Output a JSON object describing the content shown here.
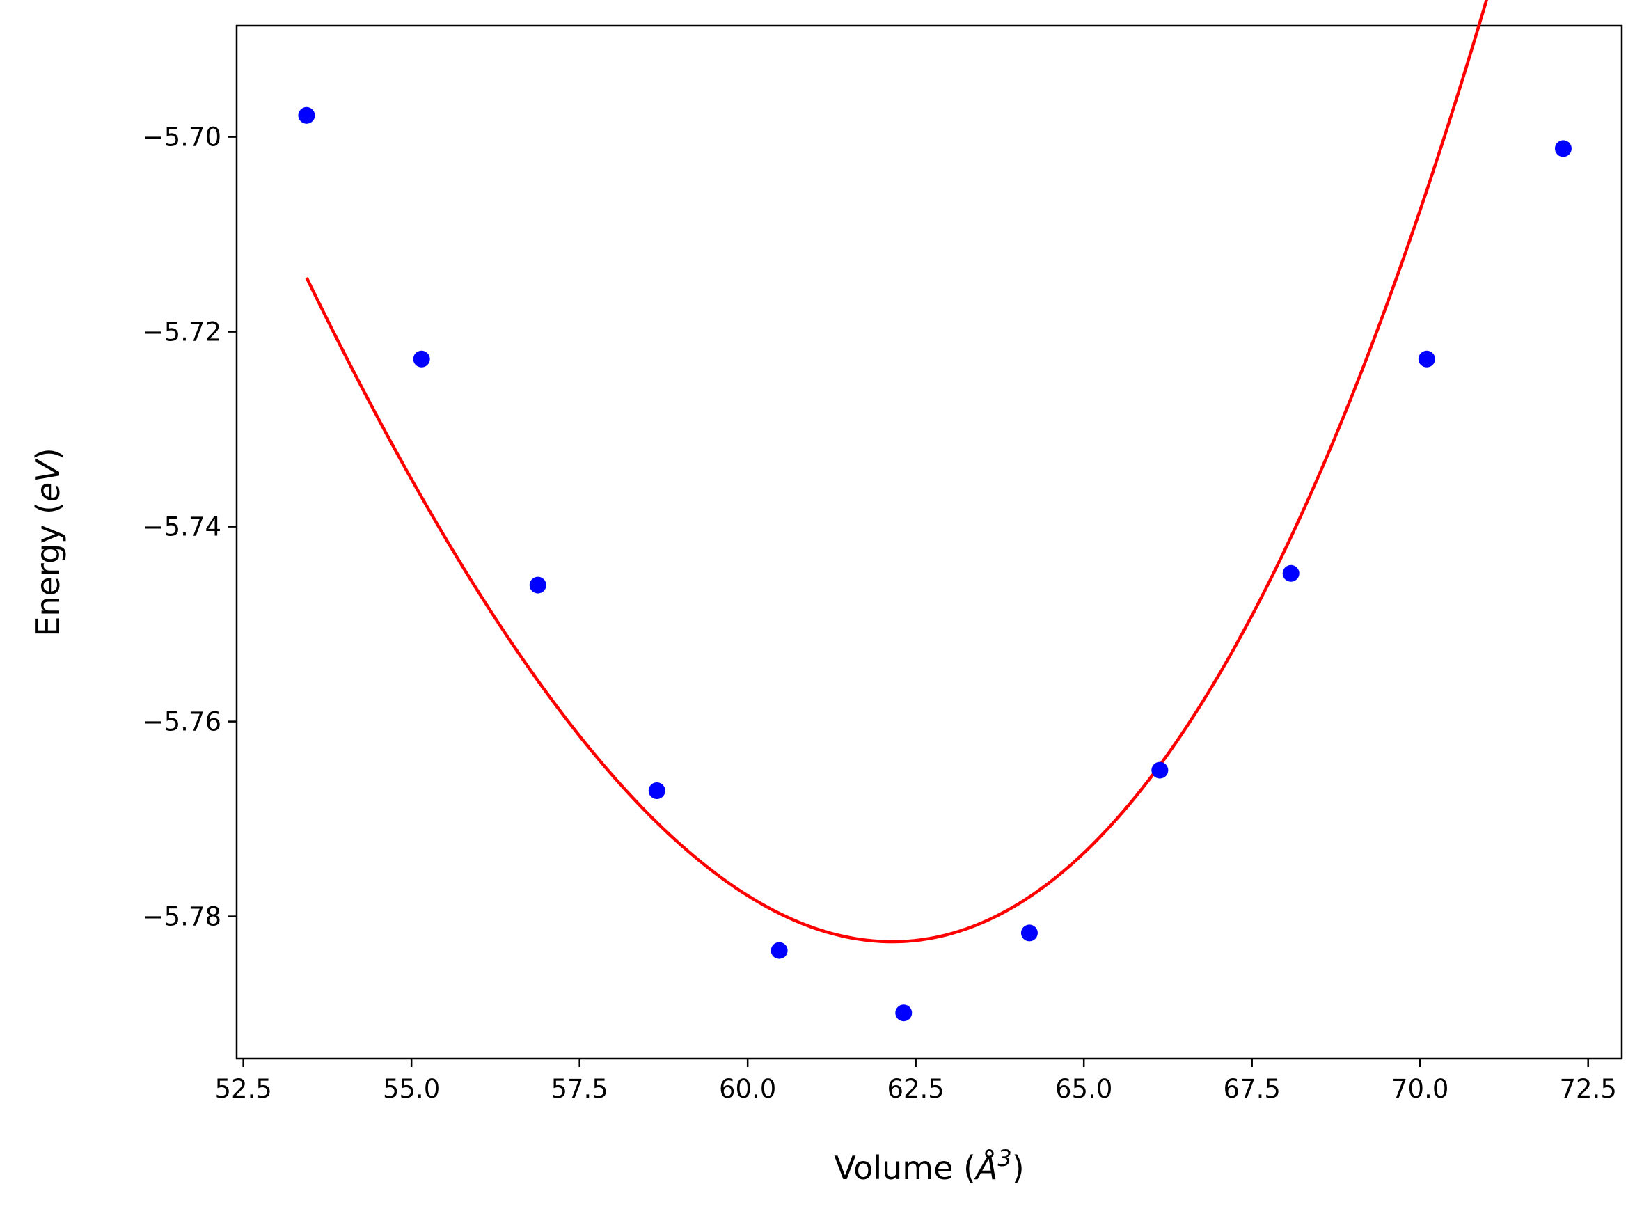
{
  "chart_data": {
    "type": "scatter",
    "title": "",
    "xlabel": {
      "prefix": "Volume (",
      "symbol": "Å",
      "superscript": "3",
      "suffix": ")"
    },
    "ylabel": {
      "prefix": "Energy (",
      "symbol": "eV",
      "suffix": ")"
    },
    "xlim": [
      52.4,
      73.0
    ],
    "ylim": [
      -5.7946,
      -5.6886
    ],
    "xticks": [
      52.5,
      55.0,
      57.5,
      60.0,
      62.5,
      65.0,
      67.5,
      70.0,
      72.5
    ],
    "xtick_labels": [
      "52.5",
      "55.0",
      "57.5",
      "60.0",
      "62.5",
      "65.0",
      "67.5",
      "70.0",
      "72.5"
    ],
    "yticks": [
      -5.7,
      -5.72,
      -5.74,
      -5.76,
      -5.78
    ],
    "ytick_labels": [
      "−5.70",
      "−5.72",
      "−5.74",
      "−5.76",
      "−5.78"
    ],
    "grid": false,
    "series": [
      {
        "name": "data",
        "kind": "scatter",
        "color": "#0000ff",
        "x": [
          53.44,
          55.15,
          56.88,
          58.65,
          60.47,
          62.32,
          64.19,
          66.13,
          68.08,
          70.1,
          72.13
        ],
        "y": [
          -5.6978,
          -5.7228,
          -5.746,
          -5.7671,
          -5.7835,
          -5.7899,
          -5.7817,
          -5.765,
          -5.7448,
          -5.7228,
          -5.7012
        ]
      },
      {
        "name": "fit",
        "kind": "line",
        "color": "#ff0000",
        "x_range": [
          53.44,
          72.13
        ],
        "v0": 62.15,
        "e0": -5.7826,
        "quad": 0.0010665,
        "cubic": 1.93e-05
      }
    ]
  }
}
